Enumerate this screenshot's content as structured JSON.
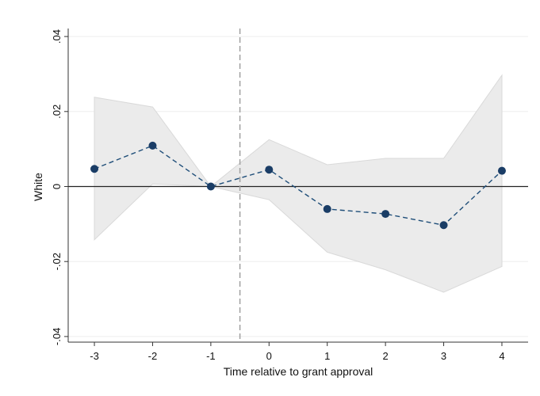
{
  "chart_data": {
    "type": "line",
    "xlabel": "Time relative to grant approval",
    "ylabel": "White",
    "x": [
      -3,
      -2,
      -1,
      0,
      1,
      2,
      3,
      4
    ],
    "x_ticks": [
      "-3",
      "-2",
      "-1",
      "0",
      "1",
      "2",
      "3",
      "4"
    ],
    "y_ticks": [
      {
        "value": -0.04,
        "label": "-.04"
      },
      {
        "value": -0.02,
        "label": "-.02"
      },
      {
        "value": 0,
        "label": "0"
      },
      {
        "value": 0.02,
        "label": ".02"
      },
      {
        "value": 0.04,
        "label": ".04"
      }
    ],
    "xlim": [
      -3.45,
      4.45
    ],
    "ylim": [
      -0.0415,
      0.0415
    ],
    "grid": true,
    "series": [
      {
        "values": [
          0.0047,
          0.0109,
          0.0,
          0.0045,
          -0.006,
          -0.0073,
          -0.0103,
          0.0042
        ],
        "ci_upper": [
          0.0238,
          0.0212,
          0.0,
          0.0125,
          0.0058,
          0.0075,
          0.0075,
          0.0297
        ],
        "ci_lower": [
          -0.0142,
          0.0007,
          0.0,
          -0.0035,
          -0.0175,
          -0.0222,
          -0.0282,
          -0.0213
        ]
      }
    ],
    "reference_lines": {
      "horizontal_y": 0,
      "vertical_x": -0.5
    },
    "colors": {
      "line": "#1f4e79",
      "marker": "#1a3d66",
      "ci_fill": "#ebebeb",
      "ci_edge": "#d9d9d9",
      "grid": "#eeeeee",
      "zero_line": "#222222",
      "vline": "#a0a0a0",
      "axis": "#333333"
    }
  }
}
